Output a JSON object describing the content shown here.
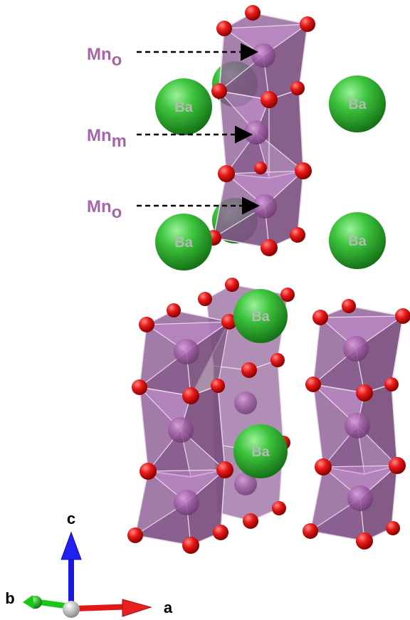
{
  "labels": {
    "mn_top": {
      "main": "Mn",
      "sub": "o"
    },
    "mn_mid": {
      "main": "Mn",
      "sub": "m"
    },
    "mn_bot": {
      "main": "Mn",
      "sub": "o"
    },
    "ba": "Ba"
  },
  "axes": {
    "c": "c",
    "b": "b",
    "a": "a"
  },
  "colors": {
    "label_purple": "#a466a8",
    "polyhedron_fill": "#8e5e96",
    "polyhedron_light": "#c48cce",
    "polyhedron_dark": "#6e466f",
    "edge": "#e8d8ea",
    "mn_atom": "#9e58a4",
    "oxygen": "#e01414",
    "barium": "#35b435",
    "ba_text": "#b8b8b8",
    "axis_c": "#1818e0",
    "axis_a": "#e01818",
    "axis_b": "#18c818",
    "origin": "#c8c8c8"
  }
}
